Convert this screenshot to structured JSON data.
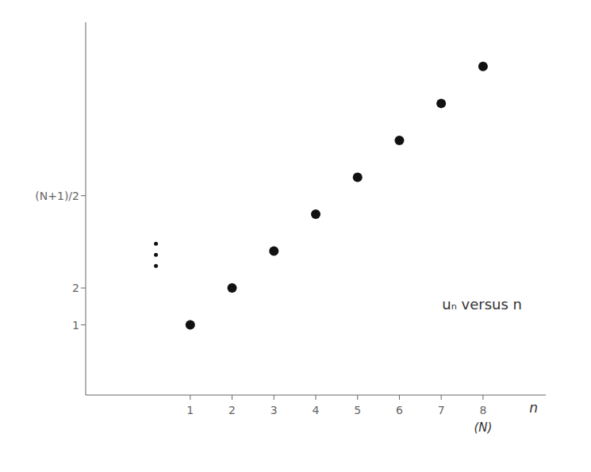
{
  "chart_data": {
    "type": "scatter",
    "xlabel": "n",
    "annotations": [
      "(N)",
      "uₙ versus n"
    ],
    "series": [
      {
        "x": [
          1,
          2,
          3,
          4,
          5,
          6,
          7,
          8
        ],
        "values": [
          1,
          2,
          3,
          4,
          5,
          6,
          7,
          8
        ],
        "color": "#111111"
      },
      {
        "x": [
          0.18,
          0.18,
          0.18
        ],
        "values": [
          2.6,
          2.9,
          3.2
        ],
        "color": "#111111"
      }
    ],
    "xlim": [
      -1.5,
      9.5
    ],
    "ylim": [
      -0.9,
      9.2
    ],
    "xticks": [
      1,
      2,
      3,
      4,
      5,
      6,
      7,
      8
    ],
    "yticks": [
      1,
      2,
      {
        "value": 4.5,
        "label": "(N+1)/2"
      }
    ],
    "grid": false
  }
}
